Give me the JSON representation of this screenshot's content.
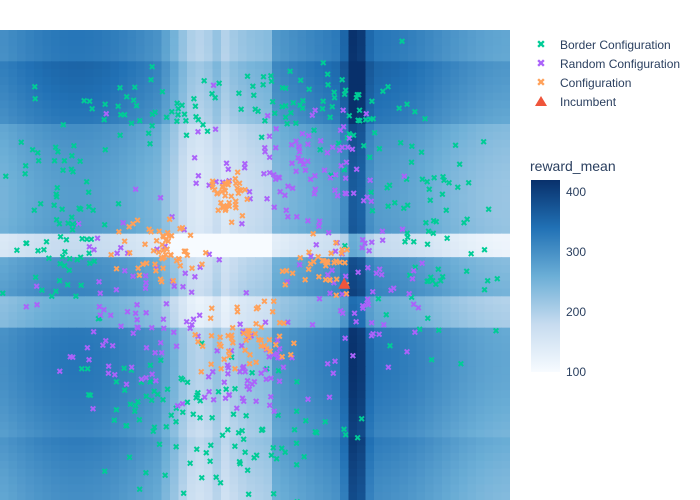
{
  "chart_data": {
    "type": "scatter",
    "background_heatmap": {
      "name": "reward_mean",
      "colorscale": "Blues",
      "zmin": 100,
      "zmax": 420,
      "colorbar_title": "reward_mean",
      "colorbar_ticks": [
        100,
        200,
        300,
        400
      ]
    },
    "legend": {
      "position": "top-right",
      "entries": [
        {
          "name": "Border Configuration",
          "symbol": "x",
          "color": "#00cc96"
        },
        {
          "name": "Random Configuration",
          "symbol": "x",
          "color": "#ab63fa"
        },
        {
          "name": "Configuration",
          "symbol": "x",
          "color": "#ffa15a"
        },
        {
          "name": "Incumbent",
          "symbol": "triangle-up",
          "color": "#ef553b"
        }
      ]
    },
    "axes": {
      "x_visible": false,
      "y_visible": false,
      "grid": false
    },
    "clusters": {
      "border": [
        {
          "cx": 0.32,
          "cy": 0.17,
          "sx": 0.07,
          "sy": 0.035,
          "n": 40
        },
        {
          "cx": 0.57,
          "cy": 0.14,
          "sx": 0.09,
          "sy": 0.035,
          "n": 50
        },
        {
          "cx": 0.72,
          "cy": 0.2,
          "sx": 0.06,
          "sy": 0.05,
          "n": 25
        },
        {
          "cx": 0.12,
          "cy": 0.42,
          "sx": 0.05,
          "sy": 0.13,
          "n": 80
        },
        {
          "cx": 0.85,
          "cy": 0.43,
          "sx": 0.06,
          "sy": 0.12,
          "n": 70
        },
        {
          "cx": 0.45,
          "cy": 0.85,
          "sx": 0.14,
          "sy": 0.07,
          "n": 85
        },
        {
          "cx": 0.3,
          "cy": 0.78,
          "sx": 0.06,
          "sy": 0.06,
          "n": 25
        }
      ],
      "random": [
        {
          "cx": 0.6,
          "cy": 0.27,
          "sx": 0.08,
          "sy": 0.06,
          "n": 80
        },
        {
          "cx": 0.72,
          "cy": 0.55,
          "sx": 0.07,
          "sy": 0.07,
          "n": 60
        },
        {
          "cx": 0.26,
          "cy": 0.58,
          "sx": 0.09,
          "sy": 0.1,
          "n": 85
        },
        {
          "cx": 0.5,
          "cy": 0.73,
          "sx": 0.09,
          "sy": 0.06,
          "n": 60
        },
        {
          "cx": 0.43,
          "cy": 0.32,
          "sx": 0.04,
          "sy": 0.03,
          "n": 10
        }
      ],
      "config": [
        {
          "cx": 0.32,
          "cy": 0.47,
          "sx": 0.035,
          "sy": 0.035,
          "n": 55
        },
        {
          "cx": 0.44,
          "cy": 0.35,
          "sx": 0.022,
          "sy": 0.025,
          "n": 40
        },
        {
          "cx": 0.47,
          "cy": 0.65,
          "sx": 0.045,
          "sy": 0.04,
          "n": 55
        },
        {
          "cx": 0.63,
          "cy": 0.5,
          "sx": 0.035,
          "sy": 0.03,
          "n": 35
        }
      ]
    },
    "incumbent": {
      "x": 0.675,
      "y": 0.54
    }
  }
}
